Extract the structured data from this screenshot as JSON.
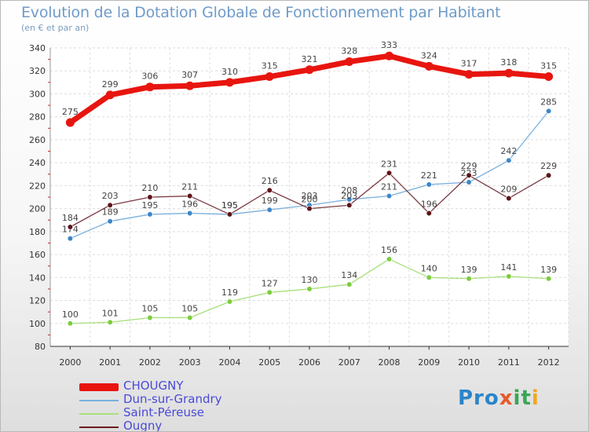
{
  "chart_data": {
    "type": "line",
    "title": "Evolution de la Dotation Globale de Fonctionnement par Habitant",
    "subtitle": "(en € et par an)",
    "x": [
      "2000",
      "2001",
      "2002",
      "2003",
      "2004",
      "2005",
      "2006",
      "2007",
      "2008",
      "2009",
      "2010",
      "2011",
      "2012"
    ],
    "ylim": [
      80,
      340
    ],
    "yticks": [
      80,
      100,
      120,
      140,
      160,
      180,
      200,
      220,
      240,
      260,
      280,
      300,
      320,
      340
    ],
    "series": [
      {
        "name": "CHOUGNY",
        "color": "#e8150f",
        "values": [
          275,
          299,
          306,
          307,
          310,
          315,
          321,
          328,
          333,
          324,
          317,
          318,
          315
        ]
      },
      {
        "name": "Dun-sur-Grandry",
        "color": "#4a8fd0",
        "values": [
          174,
          189,
          195,
          196,
          195,
          199,
          203,
          208,
          211,
          221,
          223,
          242,
          285
        ]
      },
      {
        "name": "Saint-Péreuse",
        "color": "#88d84a",
        "values": [
          100,
          101,
          105,
          105,
          119,
          127,
          130,
          134,
          156,
          140,
          139,
          141,
          139
        ]
      },
      {
        "name": "Ougny",
        "color": "#6b1a22",
        "values": [
          184,
          203,
          210,
          211,
          195,
          216,
          200,
          203,
          231,
          196,
          229,
          209,
          229
        ]
      }
    ]
  },
  "logo": {
    "text": "Proxiti",
    "p1": "Pro",
    "p2": "x",
    "p3": "it",
    "p4": "i"
  }
}
